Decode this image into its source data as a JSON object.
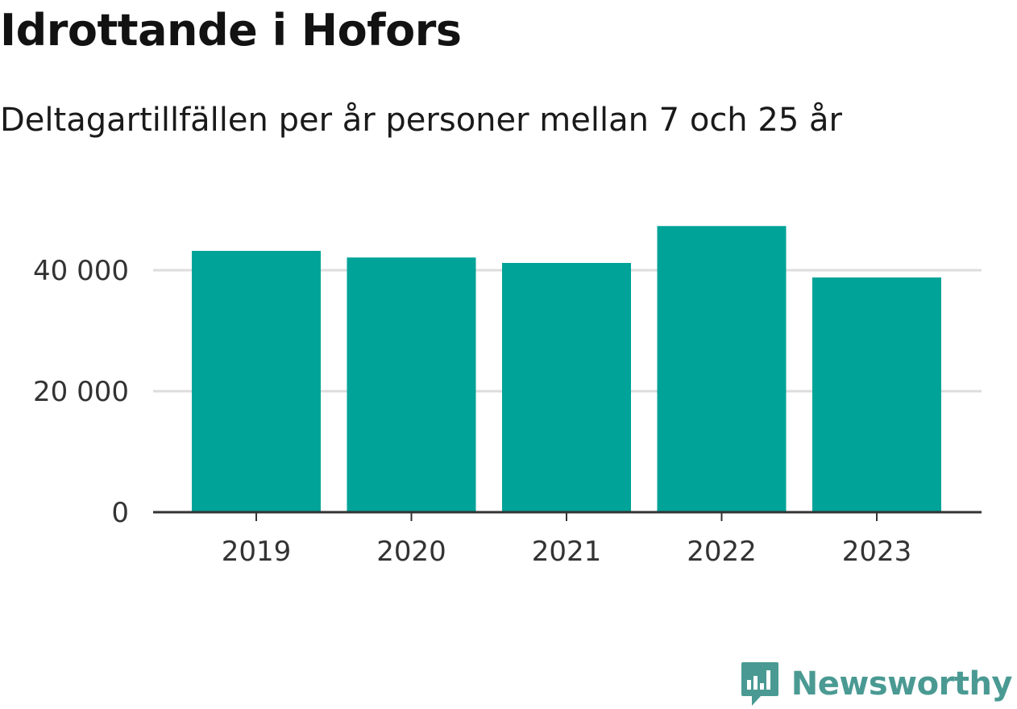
{
  "chart_data": {
    "type": "bar",
    "title": "Idrottande i Hofors",
    "subtitle": "Deltagartillfällen per år personer mellan 7 och 25 år",
    "categories": [
      "2019",
      "2020",
      "2021",
      "2022",
      "2023"
    ],
    "values": [
      43200,
      42100,
      41200,
      47300,
      38800
    ],
    "ylim": [
      0,
      50000
    ],
    "yticks": [
      0,
      20000,
      40000
    ],
    "ytick_labels": [
      "0",
      "20 000",
      "40 000"
    ],
    "xlabel": "",
    "ylabel": "",
    "grid": true,
    "bar_color": "#00a398",
    "grid_color": "#dddddd",
    "axis_color": "#333333"
  },
  "brand": {
    "name": "Newsworthy",
    "color": "#4a9a93",
    "icon": "newsworthy-logo-icon"
  }
}
